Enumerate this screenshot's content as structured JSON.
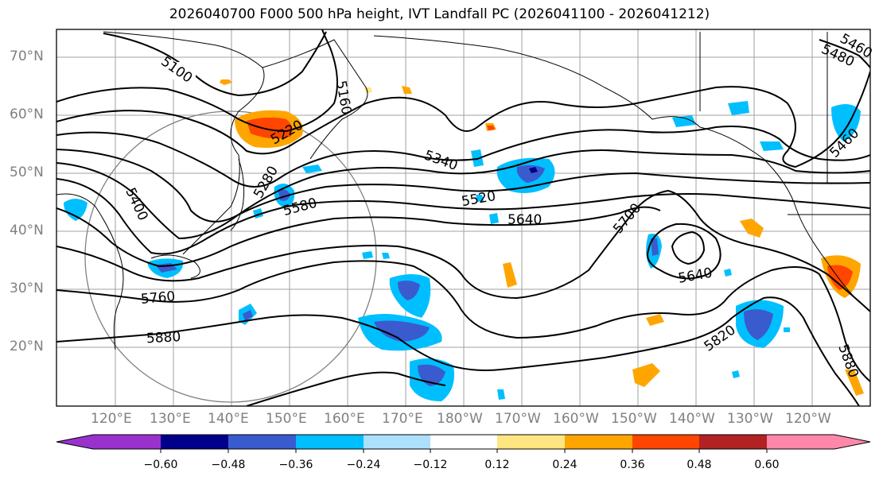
{
  "title": "2026040700 F000 500 hPa height, IVT Landfall PC (2026041100 - 2026041212)",
  "lat_labels": [
    "70°N",
    "60°N",
    "50°N",
    "40°N",
    "30°N",
    "20°N"
  ],
  "lon_labels": [
    "120°E",
    "130°E",
    "140°E",
    "150°E",
    "160°E",
    "170°E",
    "180°W",
    "170°W",
    "160°W",
    "150°W",
    "140°W",
    "130°W",
    "120°W"
  ],
  "contour_labels": [
    "5100",
    "5160",
    "5220",
    "5280",
    "5340",
    "5400",
    "5460",
    "5520",
    "5580",
    "5640",
    "5640",
    "5700",
    "5760",
    "5820",
    "5880",
    "5880",
    "5460",
    "5480"
  ],
  "colorbar": {
    "ticks": [
      "−0.60",
      "−0.48",
      "−0.36",
      "−0.24",
      "−0.12",
      "0.12",
      "0.24",
      "0.36",
      "0.48",
      "0.60"
    ],
    "colors": [
      "#9932CC",
      "#00008B",
      "#3A5BCD",
      "#00BFFF",
      "#ADE0FA",
      "#FFFFFF",
      "#FFE680",
      "#FFA500",
      "#FF4500",
      "#B22222",
      "#FF88AA"
    ],
    "extend_low_color": "#9932CC",
    "extend_high_color": "#FF88AA"
  }
}
